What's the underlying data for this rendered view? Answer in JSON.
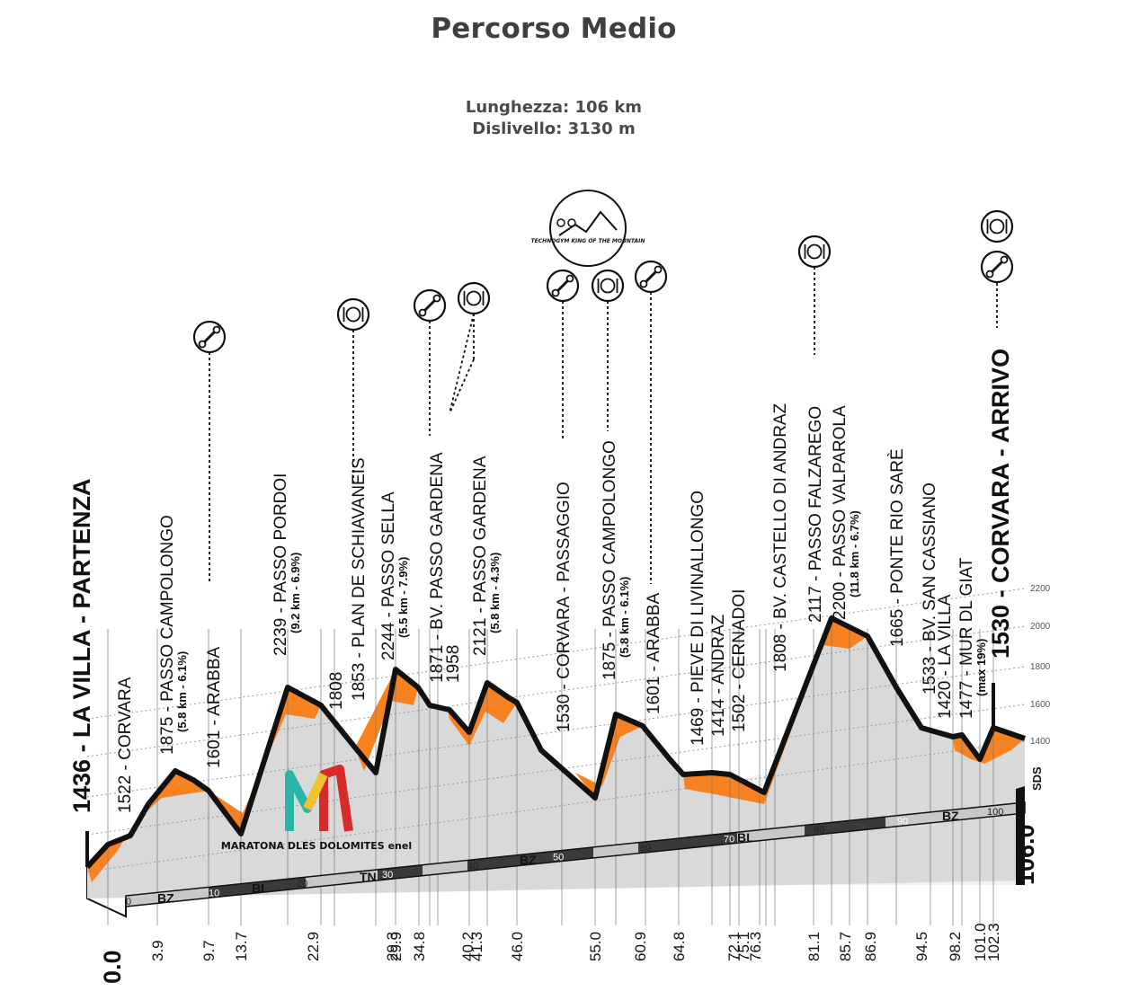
{
  "page": {
    "title": "Percorso Medio",
    "length_line": "Lunghezza: 106 km",
    "climb_line": "Dislivello: 3130 m"
  },
  "colors": {
    "climb_fill": "#f7821f",
    "profile_fill": "#d9d9d9",
    "outline": "#111111",
    "band_dark": "#3a3a3a",
    "band_light": "#c8c8c8"
  },
  "chart_data": {
    "type": "area",
    "title": "Percorso Medio",
    "start_label": "LA VILLA - PARTENZA",
    "start_elevation": "1436",
    "start_km_label": "0.0",
    "finish_label": "CORVARA - ARRIVO",
    "finish_elevation": "1530",
    "finish_km_label": "106.0",
    "finish_marker": "SDS",
    "elevation_ticks": [
      "2200",
      "2000",
      "1800",
      "1600",
      "1400"
    ],
    "distance_ticks": [
      "0",
      "10",
      "20",
      "30",
      "40",
      "50",
      "60",
      "70",
      "80",
      "90",
      "100"
    ],
    "regions": [
      "BZ",
      "BL",
      "TN",
      "BZ",
      "BL",
      "BZ"
    ],
    "logo": "MARATONA DLES DOLOMITES enel",
    "kom_badge": "TECHNOGYM KING OF THE MOUNTAIN",
    "points": [
      {
        "km": "3.9",
        "label": "1522 - CORVARA"
      },
      {
        "km": "9.7",
        "label": "1875 - PASSO CAMPOLONGO",
        "sub": "(5.8 km - 6.1%)"
      },
      {
        "km": "13.7",
        "label": "1601 - ARABBA",
        "service": "wrench"
      },
      {
        "km": "22.9",
        "label": "2239 - PASSO PORDOI",
        "sub": "(9.2 km - 6.9%)"
      },
      {
        "km": "29.3",
        "label": "1808"
      },
      {
        "km": "29.9",
        "label": "1853 - PLAN DE SCHIAVANEIS",
        "service": "food"
      },
      {
        "km": "34.8",
        "label": "2244 - PASSO SELLA",
        "sub": "(5.5 km - 7.9%)"
      },
      {
        "km": "40.2",
        "label": "1871 - BV. PASSO GARDENA",
        "service": "wrench"
      },
      {
        "km": "41.3",
        "label": "1958",
        "service": "food"
      },
      {
        "km": "46.0",
        "label": "2121 - PASSO GARDENA",
        "sub": "(5.8 km - 4.3%)"
      },
      {
        "km": "55.0",
        "label": "1530 - CORVARA - PASSAGGIO",
        "service": "wrench"
      },
      {
        "km": "60.9",
        "label": "1875 - PASSO CAMPOLONGO",
        "sub": "(5.8 km - 6.1%)",
        "service": "food"
      },
      {
        "km": "64.8",
        "label": "1601 - ARABBA",
        "service": "wrench"
      },
      {
        "km": "72.1",
        "label": "1469 - PIEVE DI LIVINALLONGO"
      },
      {
        "km": "75.1",
        "label": "1414 - ANDRAZ"
      },
      {
        "km": "76.3",
        "label": "1502 - CERNADOI"
      },
      {
        "km": "81.1",
        "label": "1808 - BV. CASTELLO DI ANDRAZ"
      },
      {
        "km": "85.7",
        "label": "2117 - PASSO FALZAREGO",
        "service": "food"
      },
      {
        "km": "86.9",
        "label": "2200 - PASSO VALPAROLA",
        "sub": "(11.8 km - 6.7%)"
      },
      {
        "km": "94.5",
        "label": "1665 - PONTE RIO SARÈ"
      },
      {
        "km": "98.2",
        "label": "1533 - BV. SAN CASSIANO"
      },
      {
        "km": "101.0",
        "label": "1420 - LA VILLA"
      },
      {
        "km": "102.3",
        "label": "1477 - MUR DL GIAT",
        "sub": "(max 19%)"
      }
    ],
    "finish_services": [
      "food",
      "wrench"
    ]
  }
}
